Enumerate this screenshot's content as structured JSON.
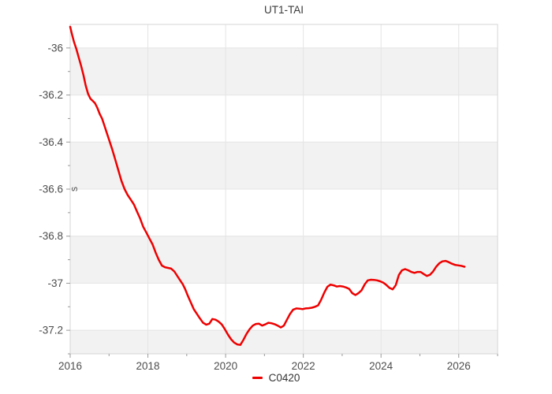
{
  "title": "UT1-TAI",
  "y_axis_unit": "s",
  "legend": {
    "label": "C0420"
  },
  "colors": {
    "line": "#ee0000",
    "band": "#f2f2f2",
    "grid": "#e4e4e4",
    "border": "#d4d4d4",
    "tick": "#999999",
    "tick_label": "#4d4d4d",
    "title": "#3a3a3a",
    "unit_label": "#555555"
  },
  "chart_data": {
    "type": "line",
    "title": "UT1-TAI",
    "xlabel": "",
    "ylabel": "s",
    "legend_position": "bottom",
    "grid": true,
    "band_fill_alternating": true,
    "xlim": [
      2016,
      2027
    ],
    "ylim": [
      -37.3,
      -35.9
    ],
    "x_major_ticks": [
      2016,
      2018,
      2020,
      2022,
      2024,
      2026
    ],
    "x_minor_ticks": [
      2017,
      2019,
      2021,
      2023,
      2025,
      2027
    ],
    "y_major_ticks": [
      -36,
      -36.2,
      -36.4,
      -36.6,
      -36.8,
      -37,
      -37.2
    ],
    "y_major_tick_labels": [
      "-36",
      "-36.2",
      "-36.4",
      "-36.6",
      "-36.8",
      "-37",
      "-37.2"
    ],
    "y_minor_ticks": [
      -36.1,
      -36.3,
      -36.5,
      -36.7,
      -36.9,
      -37.1,
      -37.3
    ],
    "series": [
      {
        "name": "C0420",
        "color": "#ee0000",
        "points": [
          [
            2016.0,
            -35.91
          ],
          [
            2016.05,
            -35.945
          ],
          [
            2016.1,
            -35.975
          ],
          [
            2016.16,
            -36.005
          ],
          [
            2016.22,
            -36.04
          ],
          [
            2016.28,
            -36.075
          ],
          [
            2016.34,
            -36.115
          ],
          [
            2016.4,
            -36.16
          ],
          [
            2016.46,
            -36.195
          ],
          [
            2016.52,
            -36.215
          ],
          [
            2016.58,
            -36.225
          ],
          [
            2016.64,
            -36.235
          ],
          [
            2016.7,
            -36.255
          ],
          [
            2016.76,
            -36.28
          ],
          [
            2016.82,
            -36.3
          ],
          [
            2016.88,
            -36.33
          ],
          [
            2016.94,
            -36.36
          ],
          [
            2017.0,
            -36.39
          ],
          [
            2017.08,
            -36.43
          ],
          [
            2017.16,
            -36.475
          ],
          [
            2017.24,
            -36.52
          ],
          [
            2017.32,
            -36.565
          ],
          [
            2017.4,
            -36.6
          ],
          [
            2017.48,
            -36.625
          ],
          [
            2017.56,
            -36.645
          ],
          [
            2017.64,
            -36.665
          ],
          [
            2017.72,
            -36.695
          ],
          [
            2017.8,
            -36.725
          ],
          [
            2017.88,
            -36.76
          ],
          [
            2017.96,
            -36.785
          ],
          [
            2018.04,
            -36.81
          ],
          [
            2018.12,
            -36.835
          ],
          [
            2018.2,
            -36.87
          ],
          [
            2018.28,
            -36.9
          ],
          [
            2018.36,
            -36.925
          ],
          [
            2018.44,
            -36.932
          ],
          [
            2018.52,
            -36.935
          ],
          [
            2018.6,
            -36.938
          ],
          [
            2018.68,
            -36.95
          ],
          [
            2018.76,
            -36.97
          ],
          [
            2018.84,
            -36.99
          ],
          [
            2018.9,
            -37.005
          ],
          [
            2018.96,
            -37.025
          ],
          [
            2019.02,
            -37.05
          ],
          [
            2019.1,
            -37.08
          ],
          [
            2019.18,
            -37.11
          ],
          [
            2019.26,
            -37.13
          ],
          [
            2019.34,
            -37.15
          ],
          [
            2019.42,
            -37.168
          ],
          [
            2019.5,
            -37.176
          ],
          [
            2019.58,
            -37.172
          ],
          [
            2019.66,
            -37.152
          ],
          [
            2019.74,
            -37.155
          ],
          [
            2019.82,
            -37.163
          ],
          [
            2019.9,
            -37.175
          ],
          [
            2019.98,
            -37.195
          ],
          [
            2020.06,
            -37.218
          ],
          [
            2020.14,
            -37.238
          ],
          [
            2020.22,
            -37.252
          ],
          [
            2020.3,
            -37.26
          ],
          [
            2020.38,
            -37.262
          ],
          [
            2020.46,
            -37.24
          ],
          [
            2020.54,
            -37.215
          ],
          [
            2020.62,
            -37.195
          ],
          [
            2020.7,
            -37.18
          ],
          [
            2020.78,
            -37.173
          ],
          [
            2020.86,
            -37.172
          ],
          [
            2020.94,
            -37.18
          ],
          [
            2021.02,
            -37.175
          ],
          [
            2021.1,
            -37.168
          ],
          [
            2021.18,
            -37.17
          ],
          [
            2021.26,
            -37.174
          ],
          [
            2021.34,
            -37.18
          ],
          [
            2021.42,
            -37.188
          ],
          [
            2021.5,
            -37.18
          ],
          [
            2021.58,
            -37.155
          ],
          [
            2021.66,
            -37.13
          ],
          [
            2021.74,
            -37.112
          ],
          [
            2021.82,
            -37.107
          ],
          [
            2021.9,
            -37.108
          ],
          [
            2021.98,
            -37.11
          ],
          [
            2022.06,
            -37.107
          ],
          [
            2022.14,
            -37.106
          ],
          [
            2022.22,
            -37.104
          ],
          [
            2022.3,
            -37.1
          ],
          [
            2022.38,
            -37.094
          ],
          [
            2022.46,
            -37.07
          ],
          [
            2022.54,
            -37.04
          ],
          [
            2022.62,
            -37.015
          ],
          [
            2022.7,
            -37.006
          ],
          [
            2022.78,
            -37.009
          ],
          [
            2022.86,
            -37.014
          ],
          [
            2022.94,
            -37.012
          ],
          [
            2023.02,
            -37.014
          ],
          [
            2023.1,
            -37.018
          ],
          [
            2023.18,
            -37.024
          ],
          [
            2023.26,
            -37.042
          ],
          [
            2023.34,
            -37.05
          ],
          [
            2023.42,
            -37.042
          ],
          [
            2023.5,
            -37.03
          ],
          [
            2023.58,
            -37.005
          ],
          [
            2023.66,
            -36.988
          ],
          [
            2023.74,
            -36.985
          ],
          [
            2023.82,
            -36.986
          ],
          [
            2023.9,
            -36.988
          ],
          [
            2023.98,
            -36.992
          ],
          [
            2024.06,
            -36.998
          ],
          [
            2024.14,
            -37.008
          ],
          [
            2024.22,
            -37.02
          ],
          [
            2024.3,
            -37.026
          ],
          [
            2024.38,
            -37.008
          ],
          [
            2024.46,
            -36.965
          ],
          [
            2024.54,
            -36.945
          ],
          [
            2024.62,
            -36.94
          ],
          [
            2024.7,
            -36.945
          ],
          [
            2024.78,
            -36.952
          ],
          [
            2024.86,
            -36.956
          ],
          [
            2024.94,
            -36.952
          ],
          [
            2025.02,
            -36.952
          ],
          [
            2025.1,
            -36.961
          ],
          [
            2025.18,
            -36.969
          ],
          [
            2025.26,
            -36.964
          ],
          [
            2025.34,
            -36.95
          ],
          [
            2025.42,
            -36.93
          ],
          [
            2025.5,
            -36.915
          ],
          [
            2025.58,
            -36.907
          ],
          [
            2025.66,
            -36.905
          ],
          [
            2025.74,
            -36.91
          ],
          [
            2025.82,
            -36.917
          ],
          [
            2025.9,
            -36.922
          ],
          [
            2025.98,
            -36.924
          ],
          [
            2026.06,
            -36.926
          ],
          [
            2026.15,
            -36.93
          ]
        ]
      }
    ]
  }
}
